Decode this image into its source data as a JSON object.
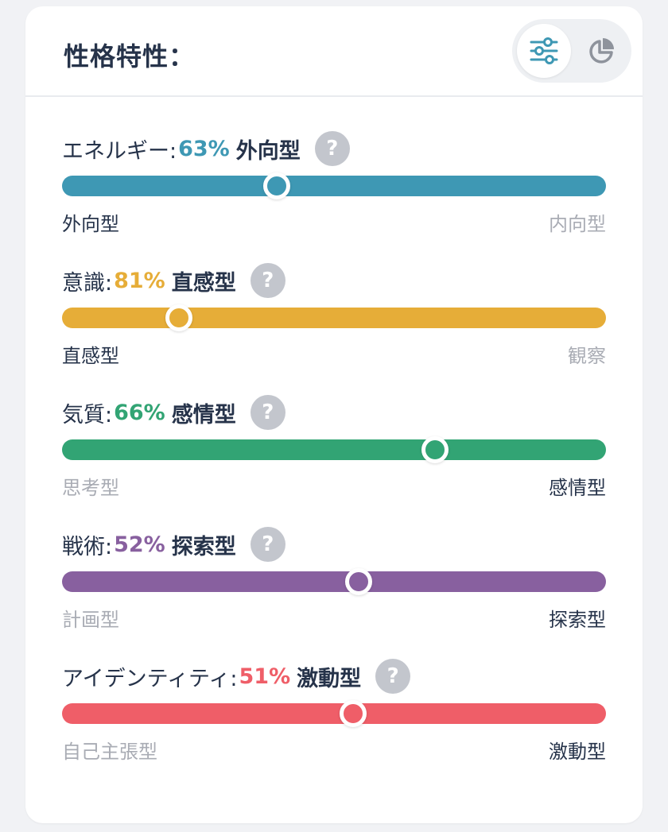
{
  "title": "性格特性：",
  "view_toggle": {
    "active": "sliders-icon",
    "inactive": "pie-chart-icon"
  },
  "colors": {
    "energy": "#3e98b4",
    "mind": "#e6ad38",
    "nature": "#32a474",
    "tactics": "#88609f",
    "identity": "#ef5e68"
  },
  "traits": [
    {
      "label": "エネルギー:",
      "percent": "63%",
      "type": "外向型",
      "left_end": "外向型",
      "right_end": "内向型",
      "highlighted_end": "left",
      "position": 0.395
    },
    {
      "label": "意識:",
      "percent": "81%",
      "type": "直感型",
      "left_end": "直感型",
      "right_end": "観察",
      "highlighted_end": "left",
      "position": 0.215
    },
    {
      "label": "気質:",
      "percent": "66%",
      "type": "感情型",
      "left_end": "思考型",
      "right_end": "感情型",
      "highlighted_end": "right",
      "position": 0.685
    },
    {
      "label": "戦術:",
      "percent": "52%",
      "type": "探索型",
      "left_end": "計画型",
      "right_end": "探索型",
      "highlighted_end": "right",
      "position": 0.545
    },
    {
      "label": "アイデンティティ:",
      "percent": "51%",
      "type": "激動型",
      "left_end": "自己主張型",
      "right_end": "激動型",
      "highlighted_end": "right",
      "position": 0.535
    }
  ]
}
